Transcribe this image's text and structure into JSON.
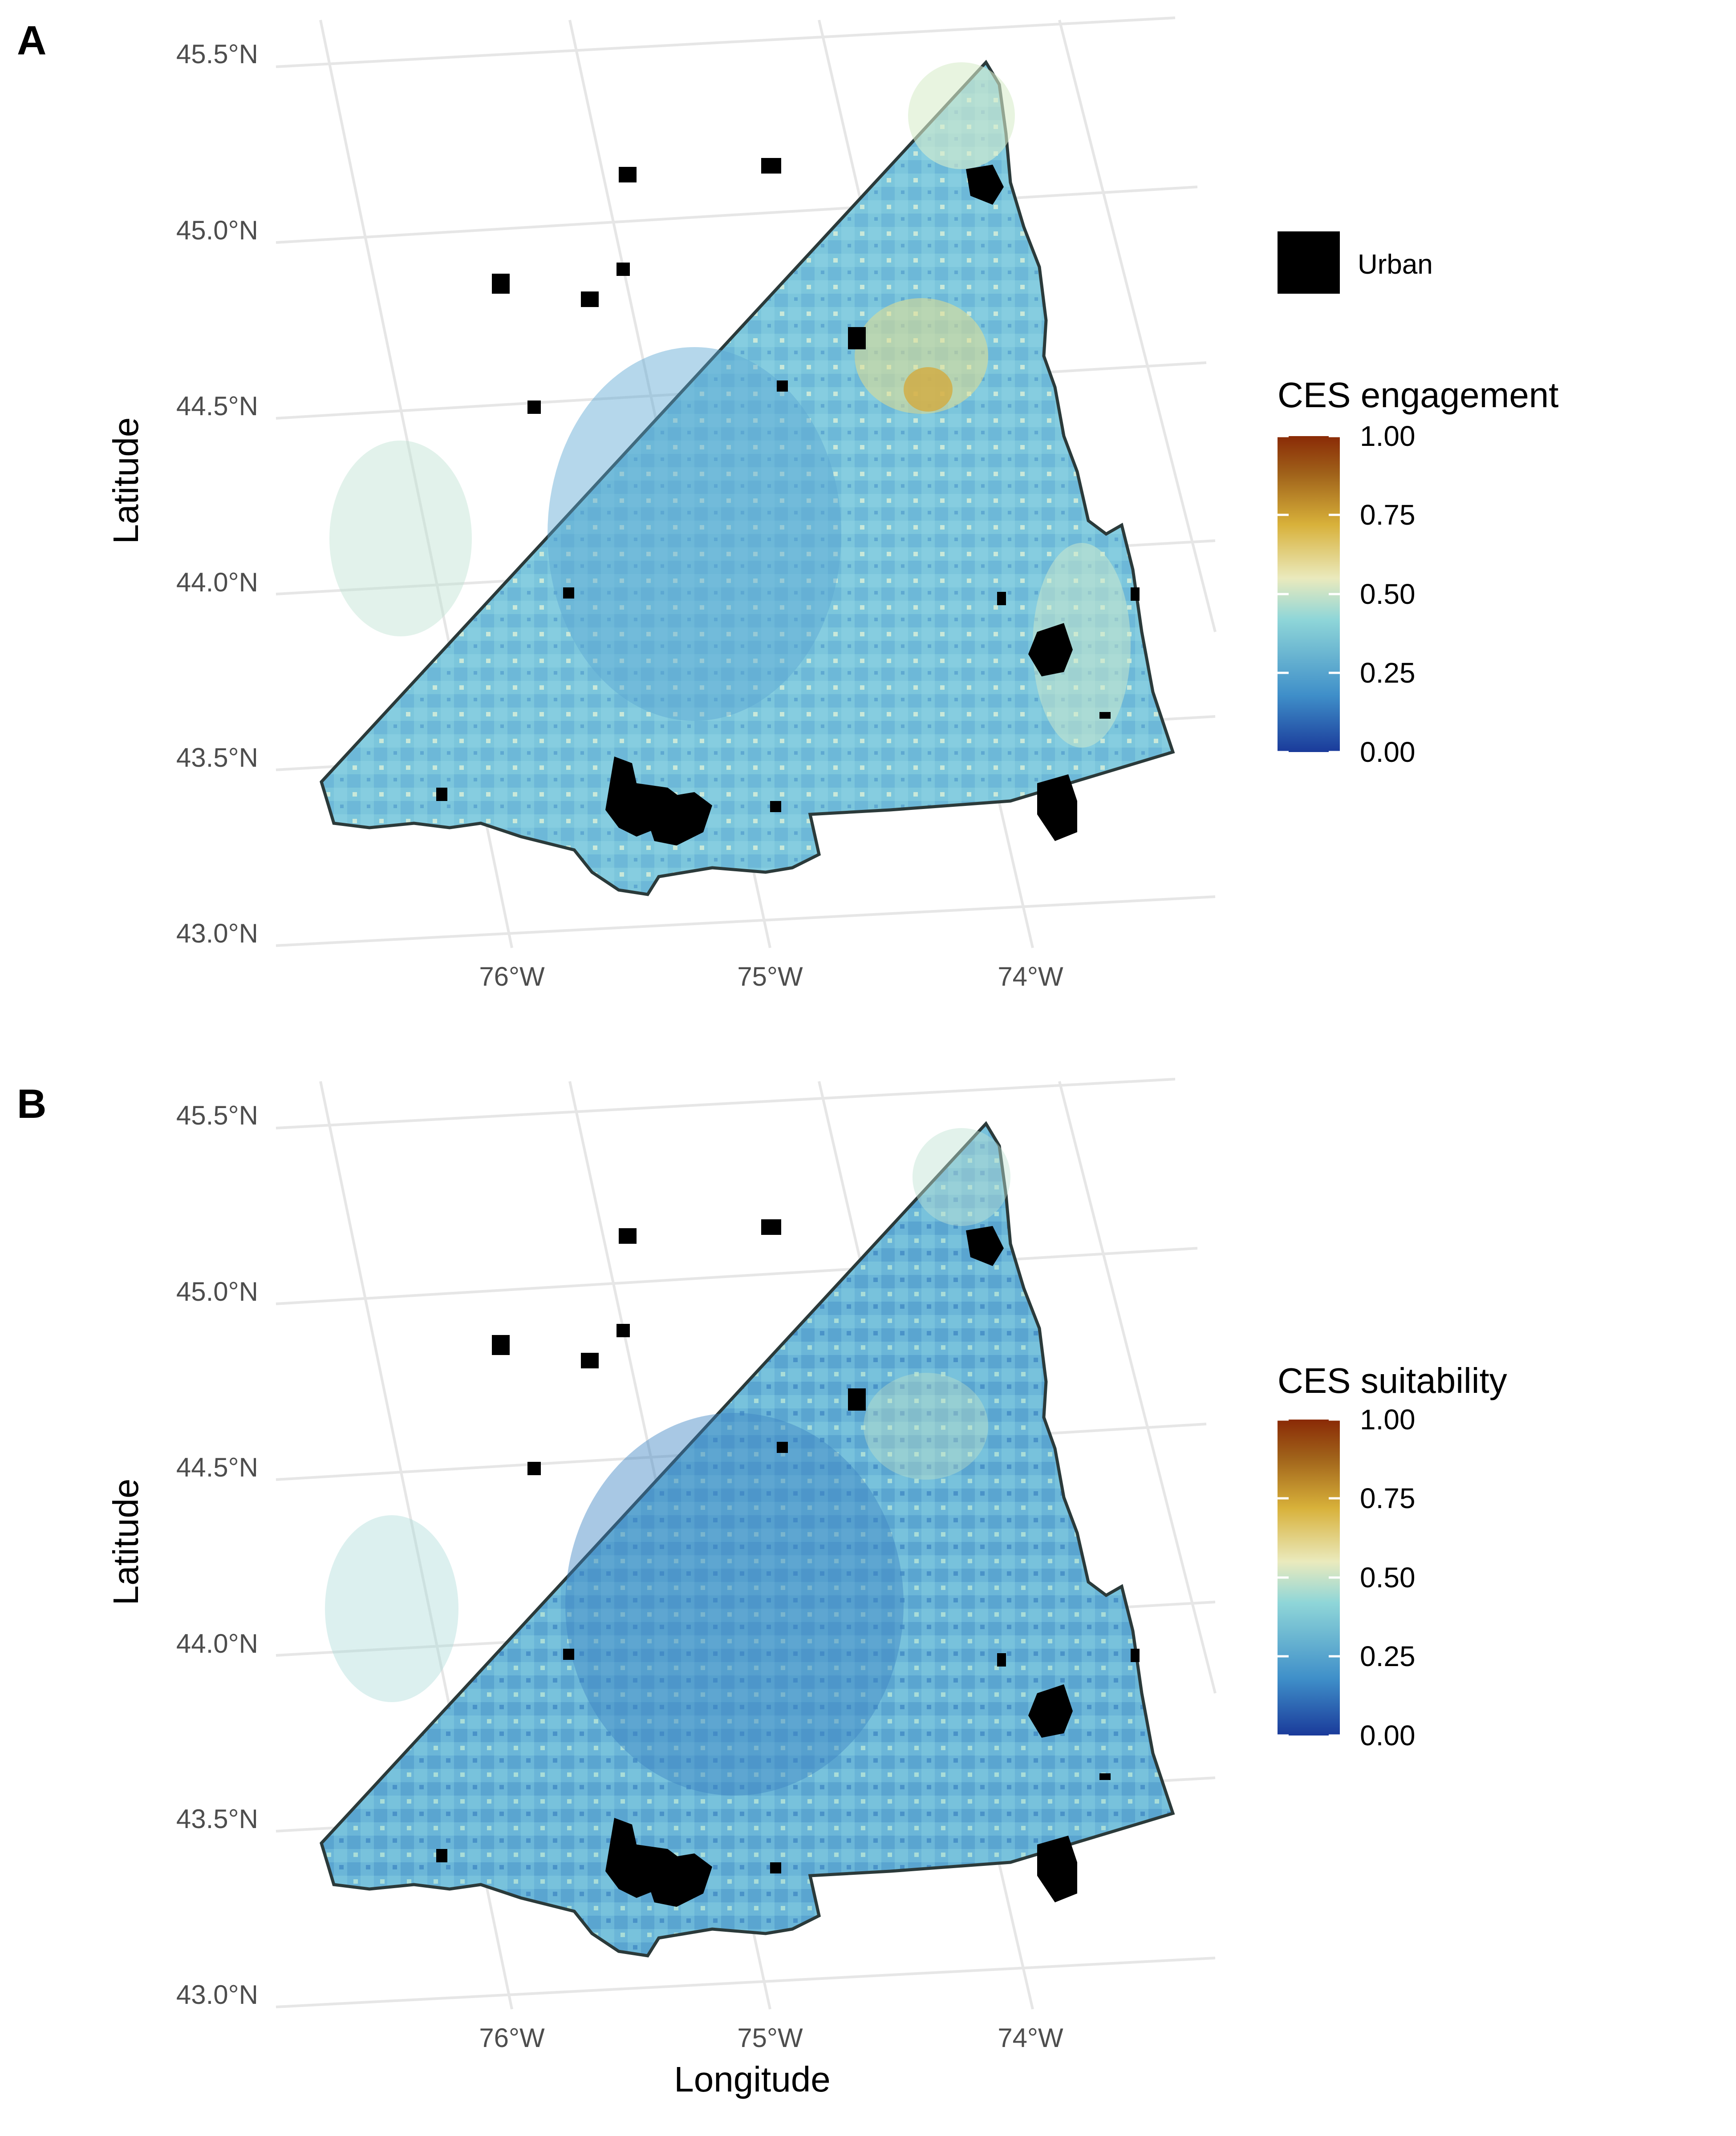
{
  "panels": [
    {
      "id": "A",
      "letter": "A",
      "ylabel": "Latitude",
      "xlabel": "",
      "legend_title": "CES engagement",
      "legend_key_label": "Urban",
      "legend_ticks": [
        "1.00",
        "0.75",
        "0.50",
        "0.25",
        "0.00"
      ]
    },
    {
      "id": "B",
      "letter": "B",
      "ylabel": "Latitude",
      "xlabel": "Longitude",
      "legend_title": "CES suitability",
      "legend_key_label": "",
      "legend_ticks": [
        "1.00",
        "0.75",
        "0.50",
        "0.25",
        "0.00"
      ]
    }
  ],
  "lat_ticks": [
    "45.5°N",
    "45.0°N",
    "44.5°N",
    "44.0°N",
    "43.5°N",
    "43.0°N"
  ],
  "lon_ticks": [
    "76°W",
    "75°W",
    "74°W"
  ],
  "colors": {
    "scale": [
      "#1a3a9a",
      "#3f8fc9",
      "#8fd6d8",
      "#eaeabd",
      "#d8b13a",
      "#a0621a",
      "#8a2a06"
    ],
    "urban": "#000000",
    "outline": "#2b3a3a",
    "grid": "#e6e6e6"
  },
  "chart_data": [
    {
      "type": "heatmap",
      "panel": "A",
      "variable": "CES engagement",
      "color_range": [
        0,
        1
      ],
      "legend_ticks": [
        0,
        0.25,
        0.5,
        0.75,
        1.0
      ],
      "lat_range": [
        43.0,
        45.5
      ],
      "lon_range": [
        -76,
        -74
      ],
      "lat_ticks": [
        45.5,
        45.0,
        44.5,
        44.0,
        43.5,
        43.0
      ],
      "lon_ticks": [
        -76,
        -75,
        -74
      ],
      "legend_items": [
        "Urban"
      ]
    },
    {
      "type": "heatmap",
      "panel": "B",
      "variable": "CES suitability",
      "color_range": [
        0,
        1
      ],
      "legend_ticks": [
        0,
        0.25,
        0.5,
        0.75,
        1.0
      ],
      "lat_range": [
        43.0,
        45.5
      ],
      "lon_range": [
        -76,
        -74
      ],
      "lat_ticks": [
        45.5,
        45.0,
        44.5,
        44.0,
        43.5,
        43.0
      ],
      "lon_ticks": [
        -76,
        -75,
        -74
      ]
    }
  ]
}
